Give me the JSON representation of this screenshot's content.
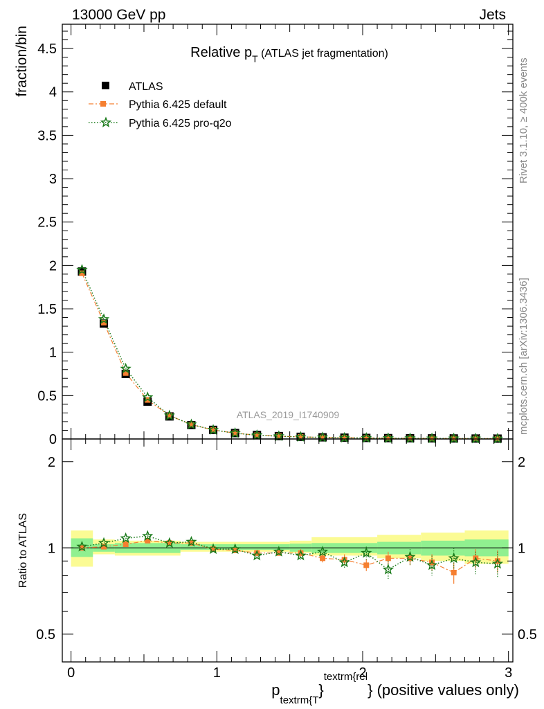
{
  "header": {
    "left": "13000 GeV pp",
    "right": "Jets"
  },
  "side_labels": {
    "rivet": "Rivet 3.1.10, ≥ 400k events",
    "mcplots": "mcplots.cern.ch [arXiv:1306.3436]"
  },
  "chart_data": {
    "type": "scatter",
    "title": {
      "main": "Relative p",
      "sub": "T",
      "suffix": " (ATLAS jet fragmentation)"
    },
    "watermark": "ATLAS_2019_I1740909",
    "xlabel": {
      "p": "p",
      "sub": "textrm{T",
      "close": "}",
      "sup": "textrm{rel",
      "tail": "} (positive values only)"
    },
    "ylabel": "fraction/bin",
    "ratio_ylabel": "Ratio to ATLAS",
    "xlim": [
      -0.06,
      3.03
    ],
    "ylim": [
      0,
      4.78
    ],
    "ratio_ylim": [
      0.4,
      2.4
    ],
    "ratio_log_scale": true,
    "xticks": [
      0,
      1,
      2,
      3
    ],
    "yticks": [
      0,
      0.5,
      1,
      1.5,
      2,
      2.5,
      3,
      3.5,
      4,
      4.5
    ],
    "ytick_labels": [
      "0",
      "0.5",
      "1",
      "1.5",
      "2",
      "2.5",
      "3",
      "3.5",
      "4",
      "4.5"
    ],
    "ratio_yticks": [
      0.5,
      1,
      2
    ],
    "ratio_ytick_labels": [
      "0.5",
      "1",
      "2"
    ],
    "legend_position": "top-left",
    "x": [
      0.075,
      0.225,
      0.375,
      0.525,
      0.675,
      0.825,
      0.975,
      1.125,
      1.275,
      1.425,
      1.575,
      1.725,
      1.875,
      2.025,
      2.175,
      2.325,
      2.475,
      2.625,
      2.775,
      2.925
    ],
    "bin_edges": [
      0,
      0.15,
      0.3,
      0.45,
      0.6,
      0.75,
      0.9,
      1.05,
      1.2,
      1.35,
      1.5,
      1.65,
      1.8,
      1.95,
      2.1,
      2.25,
      2.4,
      2.55,
      2.7,
      2.85,
      3.0
    ],
    "series": [
      {
        "name": "ATLAS",
        "color": "#000000",
        "marker": "square",
        "values": [
          1.93,
          1.33,
          0.75,
          0.43,
          0.26,
          0.16,
          0.105,
          0.068,
          0.046,
          0.033,
          0.025,
          0.019,
          0.015,
          0.012,
          0.01,
          0.008,
          0.007,
          0.006,
          0.005,
          0.004
        ]
      },
      {
        "name": "Pythia 6.425 default",
        "color": "#f57f30",
        "marker": "square-small",
        "line": "dashdot",
        "values": [
          1.91,
          1.34,
          0.76,
          0.45,
          0.27,
          0.166,
          0.104,
          0.067,
          0.044,
          0.032,
          0.024,
          0.018,
          0.014,
          0.011,
          0.009,
          0.007,
          0.006,
          0.005,
          0.0045,
          0.0036
        ],
        "ratio": [
          1.0,
          1.01,
          1.03,
          1.06,
          1.04,
          1.04,
          0.99,
          0.98,
          0.96,
          0.96,
          0.96,
          0.92,
          0.91,
          0.87,
          0.92,
          0.92,
          0.89,
          0.82,
          0.92,
          0.9
        ],
        "ratio_err": [
          0.01,
          0.01,
          0.01,
          0.015,
          0.015,
          0.015,
          0.015,
          0.015,
          0.02,
          0.02,
          0.03,
          0.03,
          0.04,
          0.04,
          0.05,
          0.05,
          0.06,
          0.07,
          0.07,
          0.08
        ]
      },
      {
        "name": "Pythia 6.425 pro-q2o",
        "color": "#1a7a1a",
        "marker": "star",
        "line": "dotted",
        "values": [
          1.95,
          1.38,
          0.81,
          0.48,
          0.27,
          0.167,
          0.104,
          0.067,
          0.043,
          0.032,
          0.023,
          0.018,
          0.013,
          0.0115,
          0.0084,
          0.0074,
          0.0062,
          0.0055,
          0.0045,
          0.0035
        ],
        "ratio": [
          1.01,
          1.04,
          1.08,
          1.1,
          1.04,
          1.05,
          0.99,
          0.99,
          0.94,
          0.97,
          0.94,
          0.97,
          0.89,
          0.96,
          0.84,
          0.93,
          0.87,
          0.92,
          0.89,
          0.88
        ],
        "ratio_err": [
          0.01,
          0.01,
          0.01,
          0.015,
          0.015,
          0.015,
          0.015,
          0.015,
          0.02,
          0.02,
          0.03,
          0.03,
          0.04,
          0.05,
          0.06,
          0.06,
          0.07,
          0.08,
          0.08,
          0.09
        ]
      }
    ],
    "ratio_band_inner": [
      [
        0.0,
        0.15,
        0.93,
        1.08
      ],
      [
        0.15,
        0.3,
        0.97,
        1.03
      ],
      [
        0.3,
        0.75,
        0.96,
        1.04
      ],
      [
        0.75,
        1.5,
        0.985,
        1.03
      ],
      [
        1.5,
        1.65,
        0.97,
        1.035
      ],
      [
        1.65,
        2.1,
        0.96,
        1.04
      ],
      [
        2.1,
        2.4,
        0.95,
        1.05
      ],
      [
        2.4,
        2.7,
        0.94,
        1.06
      ],
      [
        2.7,
        3.0,
        0.935,
        1.07
      ]
    ],
    "ratio_band_outer": [
      [
        0.0,
        0.15,
        0.86,
        1.15
      ],
      [
        0.15,
        0.3,
        0.95,
        1.07
      ],
      [
        0.3,
        0.75,
        0.94,
        1.06
      ],
      [
        0.75,
        1.5,
        0.97,
        1.05
      ],
      [
        1.5,
        1.65,
        0.96,
        1.06
      ],
      [
        1.65,
        2.1,
        0.94,
        1.09
      ],
      [
        2.1,
        2.4,
        0.92,
        1.11
      ],
      [
        2.4,
        2.7,
        0.9,
        1.13
      ],
      [
        2.7,
        3.0,
        0.88,
        1.15
      ]
    ],
    "colors": {
      "band_inner": "#90f090",
      "band_outer": "#fbfb94",
      "axis": "#000000",
      "watermark": "#999999",
      "side_label": "#888888"
    }
  }
}
